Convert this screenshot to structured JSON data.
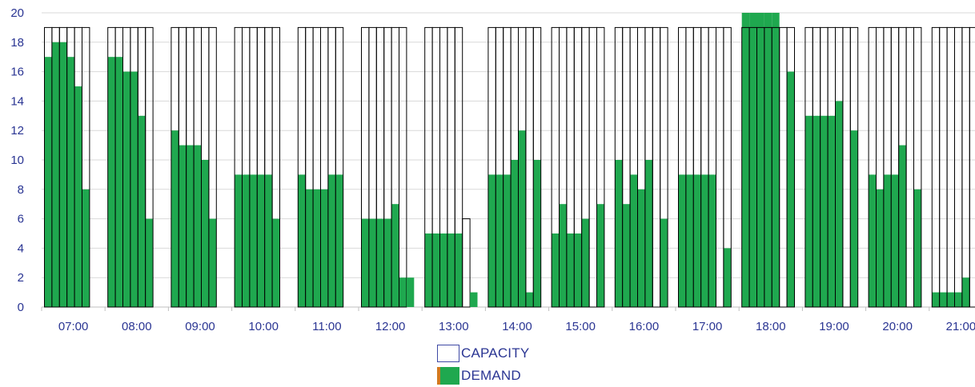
{
  "chart_data": {
    "type": "bar",
    "ylim": [
      0,
      20
    ],
    "yticks": [
      0,
      2,
      4,
      6,
      8,
      10,
      12,
      14,
      16,
      18,
      20
    ],
    "grid": true,
    "legend_position": "bottom-center",
    "hours": [
      {
        "label": "07:00",
        "capacity": [
          19,
          19,
          19,
          19,
          19,
          19
        ],
        "demand": [
          17,
          18,
          18,
          17,
          15,
          8
        ]
      },
      {
        "label": "08:00",
        "capacity": [
          19,
          19,
          19,
          19,
          19,
          19
        ],
        "demand": [
          17,
          17,
          16,
          16,
          13,
          6
        ]
      },
      {
        "label": "09:00",
        "capacity": [
          19,
          19,
          19,
          19,
          19,
          19
        ],
        "demand": [
          12,
          11,
          11,
          11,
          10,
          6
        ]
      },
      {
        "label": "10:00",
        "capacity": [
          19,
          19,
          19,
          19,
          19,
          19
        ],
        "demand": [
          9,
          9,
          9,
          9,
          9,
          6
        ]
      },
      {
        "label": "11:00",
        "capacity": [
          19,
          19,
          19,
          19,
          19,
          19
        ],
        "demand": [
          9,
          8,
          8,
          8,
          9,
          9
        ]
      },
      {
        "label": "12:00",
        "capacity": [
          19,
          19,
          19,
          19,
          19,
          19
        ],
        "demand": [
          6,
          6,
          6,
          6,
          7,
          2,
          2
        ]
      },
      {
        "label": "13:00",
        "capacity": [
          19,
          19,
          19,
          19,
          19,
          6,
          0
        ],
        "demand": [
          5,
          5,
          5,
          5,
          5,
          0,
          1
        ]
      },
      {
        "label": "14:00",
        "capacity": [
          19,
          19,
          19,
          19,
          19,
          19,
          19
        ],
        "demand": [
          9,
          9,
          9,
          10,
          12,
          1,
          10
        ]
      },
      {
        "label": "15:00",
        "capacity": [
          19,
          19,
          19,
          19,
          19,
          19,
          19
        ],
        "demand": [
          5,
          7,
          5,
          5,
          6,
          0,
          7
        ]
      },
      {
        "label": "16:00",
        "capacity": [
          19,
          19,
          19,
          19,
          19,
          19,
          19
        ],
        "demand": [
          10,
          7,
          9,
          8,
          10,
          0,
          6
        ]
      },
      {
        "label": "17:00",
        "capacity": [
          19,
          19,
          19,
          19,
          19,
          19,
          19
        ],
        "demand": [
          9,
          9,
          9,
          9,
          9,
          0,
          4
        ]
      },
      {
        "label": "18:00",
        "capacity": [
          19,
          19,
          19,
          19,
          19,
          19,
          19
        ],
        "demand": [
          20,
          20,
          20,
          20,
          20,
          0,
          16
        ]
      },
      {
        "label": "19:00",
        "capacity": [
          19,
          19,
          19,
          19,
          19,
          19,
          19
        ],
        "demand": [
          13,
          13,
          13,
          13,
          14,
          0,
          12
        ]
      },
      {
        "label": "20:00",
        "capacity": [
          19,
          19,
          19,
          19,
          19,
          19,
          19
        ],
        "demand": [
          9,
          8,
          9,
          9,
          11,
          0,
          8
        ]
      },
      {
        "label": "21:00",
        "capacity": [
          19,
          19,
          19,
          19,
          19,
          19,
          19
        ],
        "demand": [
          1,
          1,
          1,
          1,
          2,
          0,
          0
        ]
      }
    ],
    "colors": {
      "demand": "#1fa84f",
      "capacity_fill": "#ffffff",
      "capacity_stroke": "#000000",
      "tick_label": "#2a3593",
      "gridline": "#d9d9d9",
      "legend_accent": "#d37a1f"
    }
  },
  "legend": {
    "capacity_label": "CAPACITY",
    "demand_label": "DEMAND"
  }
}
